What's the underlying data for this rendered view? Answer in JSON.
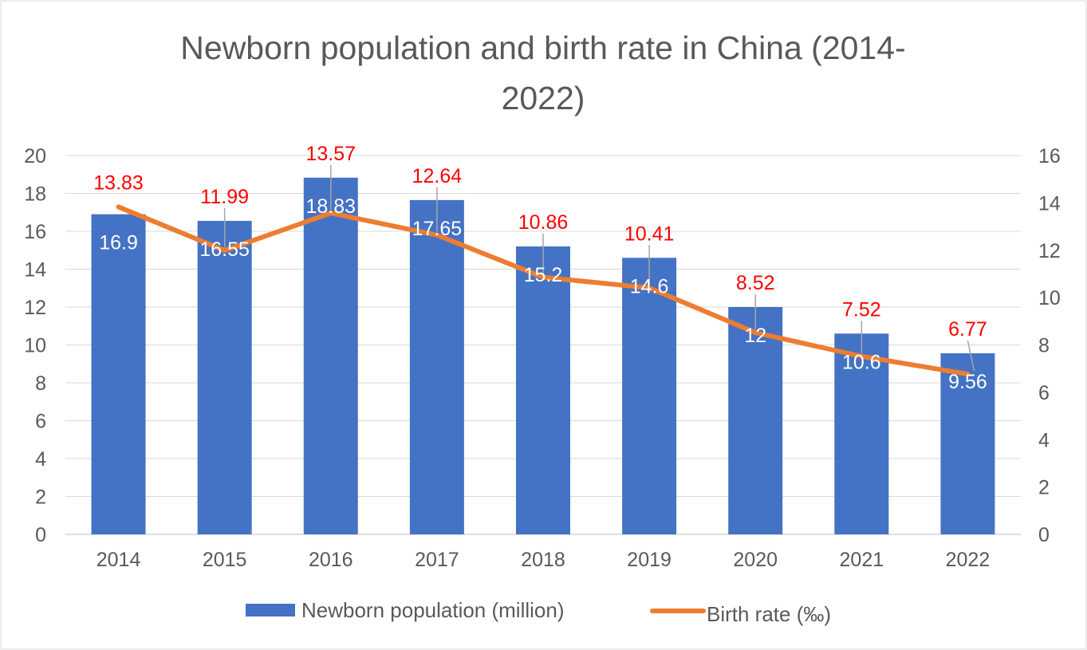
{
  "chart_data": {
    "type": "bar",
    "title_line1": "Newborn population and birth rate in China (2014-",
    "title_line2": "2022)",
    "categories": [
      "2014",
      "2015",
      "2016",
      "2017",
      "2018",
      "2019",
      "2020",
      "2021",
      "2022"
    ],
    "series": [
      {
        "name": "Newborn population (million)",
        "type": "bar",
        "axis": "left",
        "color": "#4472C4",
        "values": [
          16.9,
          16.55,
          18.83,
          17.65,
          15.2,
          14.6,
          12,
          10.6,
          9.56
        ]
      },
      {
        "name": "Birth rate (‰)",
        "type": "line",
        "axis": "right",
        "color": "#ED7D31",
        "label_color": "#FF0000",
        "values": [
          13.83,
          11.99,
          13.57,
          12.64,
          10.86,
          10.41,
          8.52,
          7.52,
          6.77
        ]
      }
    ],
    "y_left": {
      "min": 0,
      "max": 20,
      "step": 2
    },
    "y_right": {
      "min": 0,
      "max": 16,
      "step": 2
    },
    "grid": true,
    "legend_position": "bottom"
  }
}
